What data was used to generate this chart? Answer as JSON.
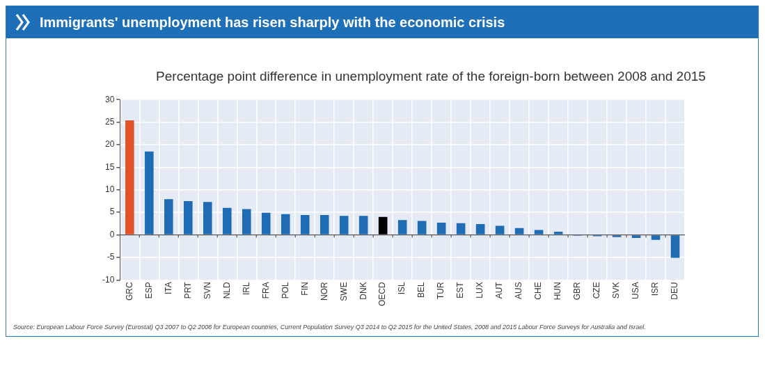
{
  "chart_data": {
    "type": "bar",
    "title": "Immigrants' unemployment has risen sharply with the economic crisis",
    "subtitle": "Percentage point difference in unemployment rate of the foreign-born between 2008 and 2015",
    "categories": [
      "GRC",
      "ESP",
      "ITA",
      "PRT",
      "SVN",
      "NLD",
      "IRL",
      "FRA",
      "POL",
      "FIN",
      "NOR",
      "SWE",
      "DNK",
      "OECD",
      "ISL",
      "BEL",
      "TUR",
      "EST",
      "LUX",
      "AUT",
      "AUS",
      "CHE",
      "HUN",
      "GBR",
      "CZE",
      "SVK",
      "USA",
      "ISR",
      "DEU"
    ],
    "values": [
      25.4,
      18.5,
      7.9,
      7.5,
      7.3,
      6.0,
      5.7,
      4.9,
      4.6,
      4.4,
      4.4,
      4.2,
      4.2,
      4.0,
      3.3,
      3.1,
      2.7,
      2.6,
      2.4,
      2.0,
      1.5,
      1.1,
      0.7,
      -0.2,
      -0.3,
      -0.5,
      -0.7,
      -1.1,
      -5.1
    ],
    "colors": [
      "#e0522b",
      "#1f6cb4",
      "#1f6cb4",
      "#1f6cb4",
      "#1f6cb4",
      "#1f6cb4",
      "#1f6cb4",
      "#1f6cb4",
      "#1f6cb4",
      "#1f6cb4",
      "#1f6cb4",
      "#1f6cb4",
      "#1f6cb4",
      "#000000",
      "#1f6cb4",
      "#1f6cb4",
      "#1f6cb4",
      "#1f6cb4",
      "#1f6cb4",
      "#1f6cb4",
      "#1f6cb4",
      "#1f6cb4",
      "#1f6cb4",
      "#1f6cb4",
      "#1f6cb4",
      "#1f6cb4",
      "#1f6cb4",
      "#1f6cb4",
      "#1f6cb4"
    ],
    "ylim": [
      -10,
      30
    ],
    "yticks": [
      -10,
      -5,
      0,
      5,
      10,
      15,
      20,
      25,
      30
    ],
    "grid": true,
    "annotations": [
      "Source: European Labour Force Survey (Eurostat) Q3 2007 to Q2 2008 for European countries, Current Population Survey Q3 2014 to Q2 2015 for the United States, 2008 and 2015 Labour Force Surveys for Australia and Israel."
    ]
  }
}
